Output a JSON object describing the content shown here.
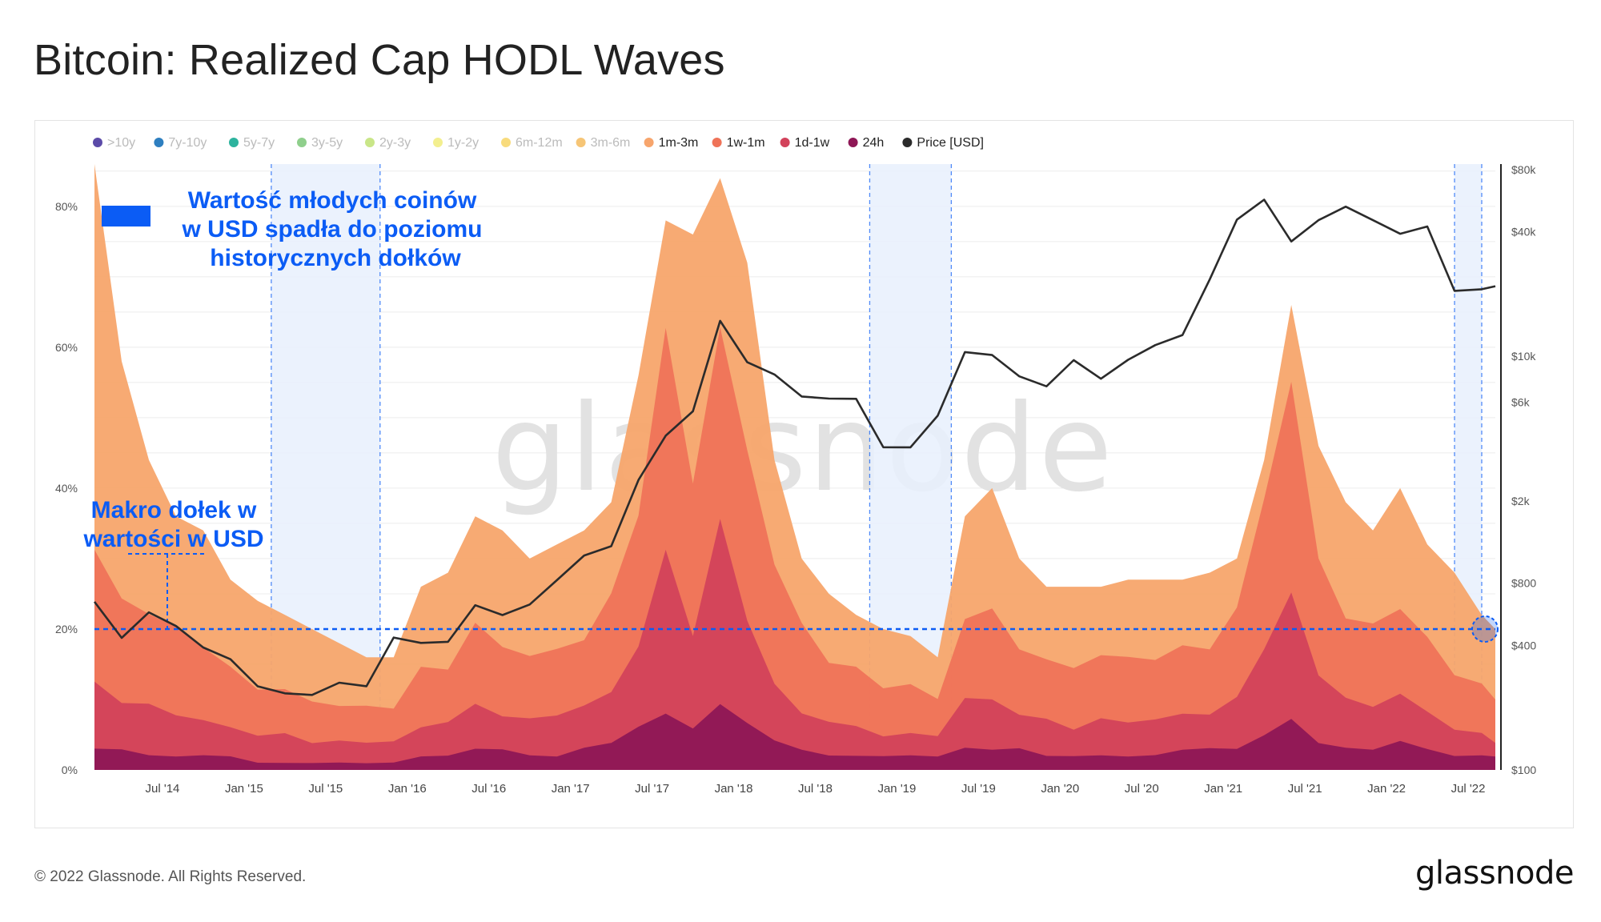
{
  "title": "Bitcoin: Realized Cap HODL Waves",
  "footer": {
    "copyright": "© 2022 Glassnode. All Rights Reserved.",
    "brand": "glassnode",
    "watermark": "glassnode"
  },
  "annotations": {
    "young_coins": [
      "Wartość młodych coinów",
      "w USD spadła do poziomu",
      "historycznych dołków"
    ],
    "macro_bottom": [
      "Makro dołek w",
      "wartości w USD"
    ]
  },
  "colors": {
    "accent": "#0b5cf5",
    "price": "#2b2b2b",
    "watermark": "#e2e2e2",
    "grid": "#ececec",
    "highlight": "#e8f0fd"
  },
  "chart_data": {
    "type": "area",
    "title": "Bitcoin: Realized Cap HODL Waves",
    "legend_position": "top",
    "x_axis": {
      "ticks": [
        "Jul '14",
        "Jan '15",
        "Jul '15",
        "Jan '16",
        "Jul '16",
        "Jan '17",
        "Jul '17",
        "Jan '18",
        "Jul '18",
        "Jan '19",
        "Jul '19",
        "Jan '20",
        "Jul '20",
        "Jan '21",
        "Jul '21",
        "Jan '22",
        "Jul '22"
      ],
      "range": [
        "2014-02",
        "2022-09"
      ]
    },
    "y_left": {
      "ticks": [
        "0%",
        "20%",
        "40%",
        "60%",
        "80%"
      ],
      "range": [
        0,
        86
      ]
    },
    "y_right": {
      "scale": "log",
      "ticks": [
        "$100",
        "$400",
        "$800",
        "$2k",
        "$6k",
        "$10k",
        "$40k",
        "$80k"
      ],
      "range": [
        100,
        85000
      ]
    },
    "grid": true,
    "legend": [
      {
        "label": ">10y",
        "color": "#5b4aa8",
        "active": false
      },
      {
        "label": "7y-10y",
        "color": "#2e7fc0",
        "active": false
      },
      {
        "label": "5y-7y",
        "color": "#2db39e",
        "active": false
      },
      {
        "label": "3y-5y",
        "color": "#8fcf8c",
        "active": false
      },
      {
        "label": "2y-3y",
        "color": "#c9e688",
        "active": false
      },
      {
        "label": "1y-2y",
        "color": "#f3ef8f",
        "active": false
      },
      {
        "label": "6m-12m",
        "color": "#f8db7c",
        "active": false
      },
      {
        "label": "3m-6m",
        "color": "#f6c576",
        "active": false
      },
      {
        "label": "1m-3m",
        "color": "#f7a56c",
        "active": true
      },
      {
        "label": "1w-1m",
        "color": "#ef7358",
        "active": true
      },
      {
        "label": "1d-1w",
        "color": "#d2425b",
        "active": true
      },
      {
        "label": "24h",
        "color": "#8e1756",
        "active": true
      },
      {
        "label": "Price [USD]",
        "color": "#2b2b2b",
        "active": true
      }
    ],
    "dates": [
      "2014-02",
      "2014-04",
      "2014-06",
      "2014-08",
      "2014-10",
      "2014-12",
      "2015-02",
      "2015-04",
      "2015-06",
      "2015-08",
      "2015-10",
      "2015-12",
      "2016-02",
      "2016-04",
      "2016-06",
      "2016-08",
      "2016-10",
      "2016-12",
      "2017-02",
      "2017-04",
      "2017-06",
      "2017-08",
      "2017-10",
      "2017-12",
      "2018-02",
      "2018-04",
      "2018-06",
      "2018-08",
      "2018-10",
      "2018-12",
      "2019-02",
      "2019-04",
      "2019-06",
      "2019-08",
      "2019-10",
      "2019-12",
      "2020-02",
      "2020-04",
      "2020-06",
      "2020-08",
      "2020-10",
      "2020-12",
      "2021-02",
      "2021-04",
      "2021-06",
      "2021-08",
      "2021-10",
      "2021-12",
      "2022-02",
      "2022-04",
      "2022-06",
      "2022-08",
      "2022-09"
    ],
    "series": [
      {
        "name": "1m-3m",
        "color": "#f7a56c",
        "values": [
          86,
          58,
          44,
          36,
          34,
          27,
          24,
          22,
          20,
          18,
          16,
          16,
          26,
          28,
          36,
          34,
          30,
          32,
          34,
          38,
          56,
          78,
          76,
          84,
          72,
          44,
          30,
          25,
          22,
          20,
          19,
          16,
          36,
          40,
          30,
          26,
          26,
          26,
          27,
          27,
          27,
          28,
          30,
          44,
          66,
          46,
          38,
          34,
          40,
          32,
          28,
          22,
          20
        ]
      },
      {
        "name": "1w-1m",
        "color": "#ef7358",
        "values": [
          30,
          25,
          22,
          20,
          18,
          14,
          12,
          11,
          10,
          9,
          9,
          9,
          14,
          15,
          20,
          18,
          16,
          17,
          19,
          24,
          38,
          60,
          42,
          62,
          45,
          30,
          20,
          16,
          14,
          12,
          12,
          10,
          22,
          22,
          18,
          15,
          15,
          16,
          16,
          16,
          17,
          18,
          22,
          40,
          54,
          30,
          22,
          20,
          24,
          18,
          14,
          12,
          10
        ]
      },
      {
        "name": "1d-1w",
        "color": "#d2425b",
        "values": [
          12,
          10,
          9,
          8,
          7,
          6,
          5,
          5,
          4,
          4,
          4,
          4,
          6,
          7,
          9,
          8,
          7,
          8,
          9,
          11,
          18,
          30,
          20,
          34,
          22,
          12,
          8,
          7,
          6,
          5,
          5,
          5,
          10,
          10,
          8,
          7,
          6,
          7,
          7,
          7,
          8,
          8,
          10,
          18,
          24,
          14,
          10,
          9,
          11,
          8,
          6,
          5,
          4
        ]
      },
      {
        "name": "24h",
        "color": "#8e1756",
        "values": [
          3,
          3,
          2,
          2,
          2,
          2,
          1,
          1,
          1,
          1,
          1,
          1,
          2,
          2,
          3,
          3,
          2,
          2,
          3,
          4,
          6,
          8,
          6,
          9,
          7,
          4,
          3,
          2,
          2,
          2,
          2,
          2,
          3,
          3,
          3,
          2,
          2,
          2,
          2,
          2,
          3,
          3,
          3,
          5,
          7,
          4,
          3,
          3,
          4,
          3,
          2,
          2,
          2
        ]
      },
      {
        "name": "Price [USD]",
        "color": "#2b2b2b",
        "axis": "right",
        "values": [
          650,
          450,
          600,
          500,
          380,
          330,
          250,
          240,
          240,
          270,
          250,
          420,
          400,
          420,
          650,
          580,
          630,
          800,
          1050,
          1200,
          2600,
          4300,
          5500,
          14500,
          9000,
          8000,
          6500,
          6500,
          6400,
          3600,
          3500,
          5000,
          10500,
          10500,
          8300,
          7200,
          9300,
          7500,
          9500,
          11600,
          13200,
          24000,
          45000,
          55000,
          35000,
          46000,
          55000,
          47000,
          39000,
          41000,
          20000,
          21000,
          22500
        ]
      }
    ],
    "highlight_ranges": [
      [
        "2015-03",
        "2015-11"
      ],
      [
        "2018-11",
        "2019-05"
      ],
      [
        "2022-06",
        "2022-08"
      ]
    ],
    "reference_line": {
      "value": 20,
      "axis": "left",
      "label": ""
    }
  }
}
